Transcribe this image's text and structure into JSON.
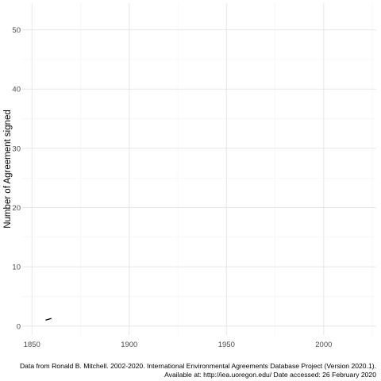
{
  "chart_data": {
    "type": "line",
    "title": "",
    "xlabel": "",
    "ylabel": "Number of Agreement signed",
    "xlim": [
      1845,
      2027
    ],
    "ylim": [
      -1.5,
      54.5
    ],
    "x_ticks": [
      1850,
      1900,
      1950,
      2000
    ],
    "x_tick_labels": [
      "1850",
      "1900",
      "1950",
      "2000"
    ],
    "y_ticks": [
      0,
      10,
      20,
      30,
      40,
      50
    ],
    "y_tick_labels": [
      "0",
      "10",
      "20",
      "30",
      "40",
      "50"
    ],
    "grid": true,
    "legend": "none",
    "series": [
      {
        "x": [
          1857,
          1860
        ],
        "values": [
          1,
          1.3
        ]
      }
    ],
    "colors": {
      "line": "#000000",
      "grid_major": "#e6e6e6",
      "grid_minor": "#f1f1f1"
    }
  },
  "caption": {
    "line1": "Data from Ronald B. Mitchell. 2002-2020. International Environmental Agreements Database Project (Version 2020.1).",
    "line2": "Available at: http://iea.uoregon.edu/ Date accessed: 26 February 2020"
  }
}
